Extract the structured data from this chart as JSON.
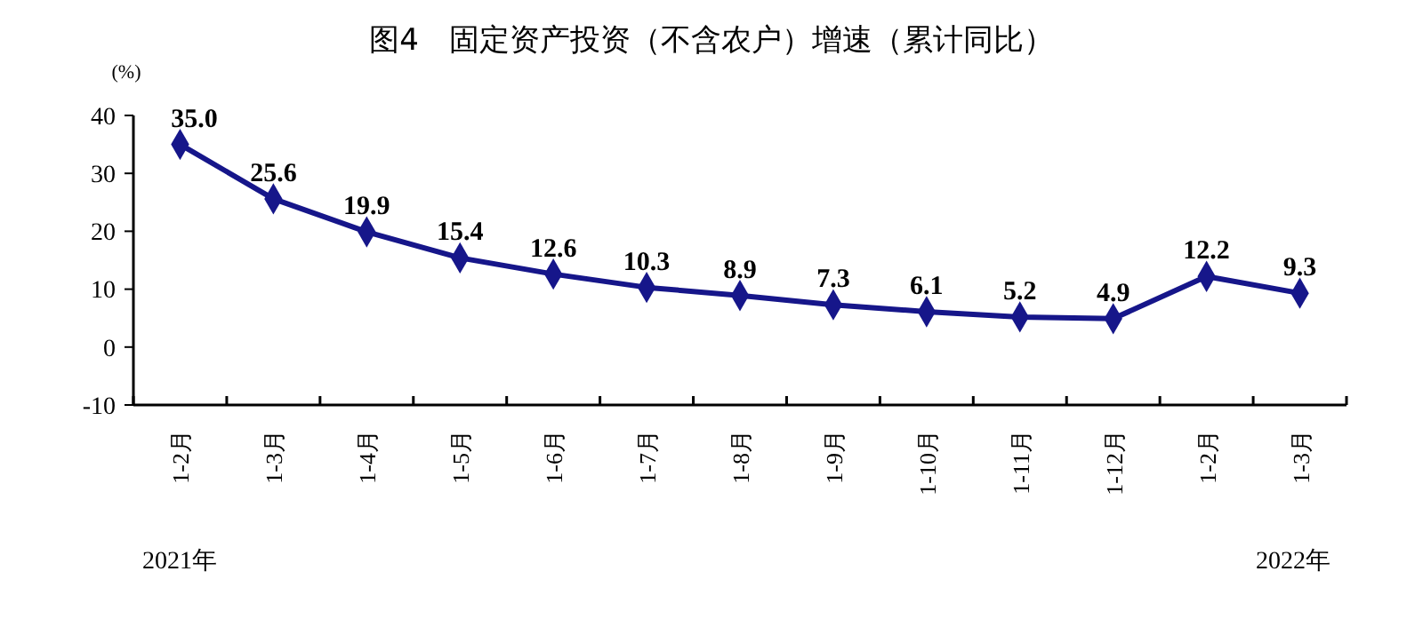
{
  "chart_data": {
    "type": "line",
    "title": "图4　固定资产投资（不含农户）增速（累计同比）",
    "ylabel": "(%)",
    "categories": [
      "1-2月",
      "1-3月",
      "1-4月",
      "1-5月",
      "1-6月",
      "1-7月",
      "1-8月",
      "1-9月",
      "1-10月",
      "1-11月",
      "1-12月",
      "1-2月",
      "1-3月"
    ],
    "series": [
      {
        "color": "#16168a",
        "values": [
          35.0,
          25.6,
          19.9,
          15.4,
          12.6,
          10.3,
          8.9,
          7.3,
          6.1,
          5.2,
          4.9,
          12.2,
          9.3
        ],
        "value_labels": [
          "35.0",
          "25.6",
          "19.9",
          "15.4",
          "12.6",
          "10.3",
          "8.9",
          "7.3",
          "6.1",
          "5.2",
          "4.9",
          "12.2",
          "9.3"
        ]
      }
    ],
    "ylim": [
      -10,
      40
    ],
    "yticks": [
      -10,
      0,
      10,
      20,
      30,
      40
    ],
    "marker": "diamond",
    "annotations": [
      "2021年",
      "2022年"
    ]
  }
}
